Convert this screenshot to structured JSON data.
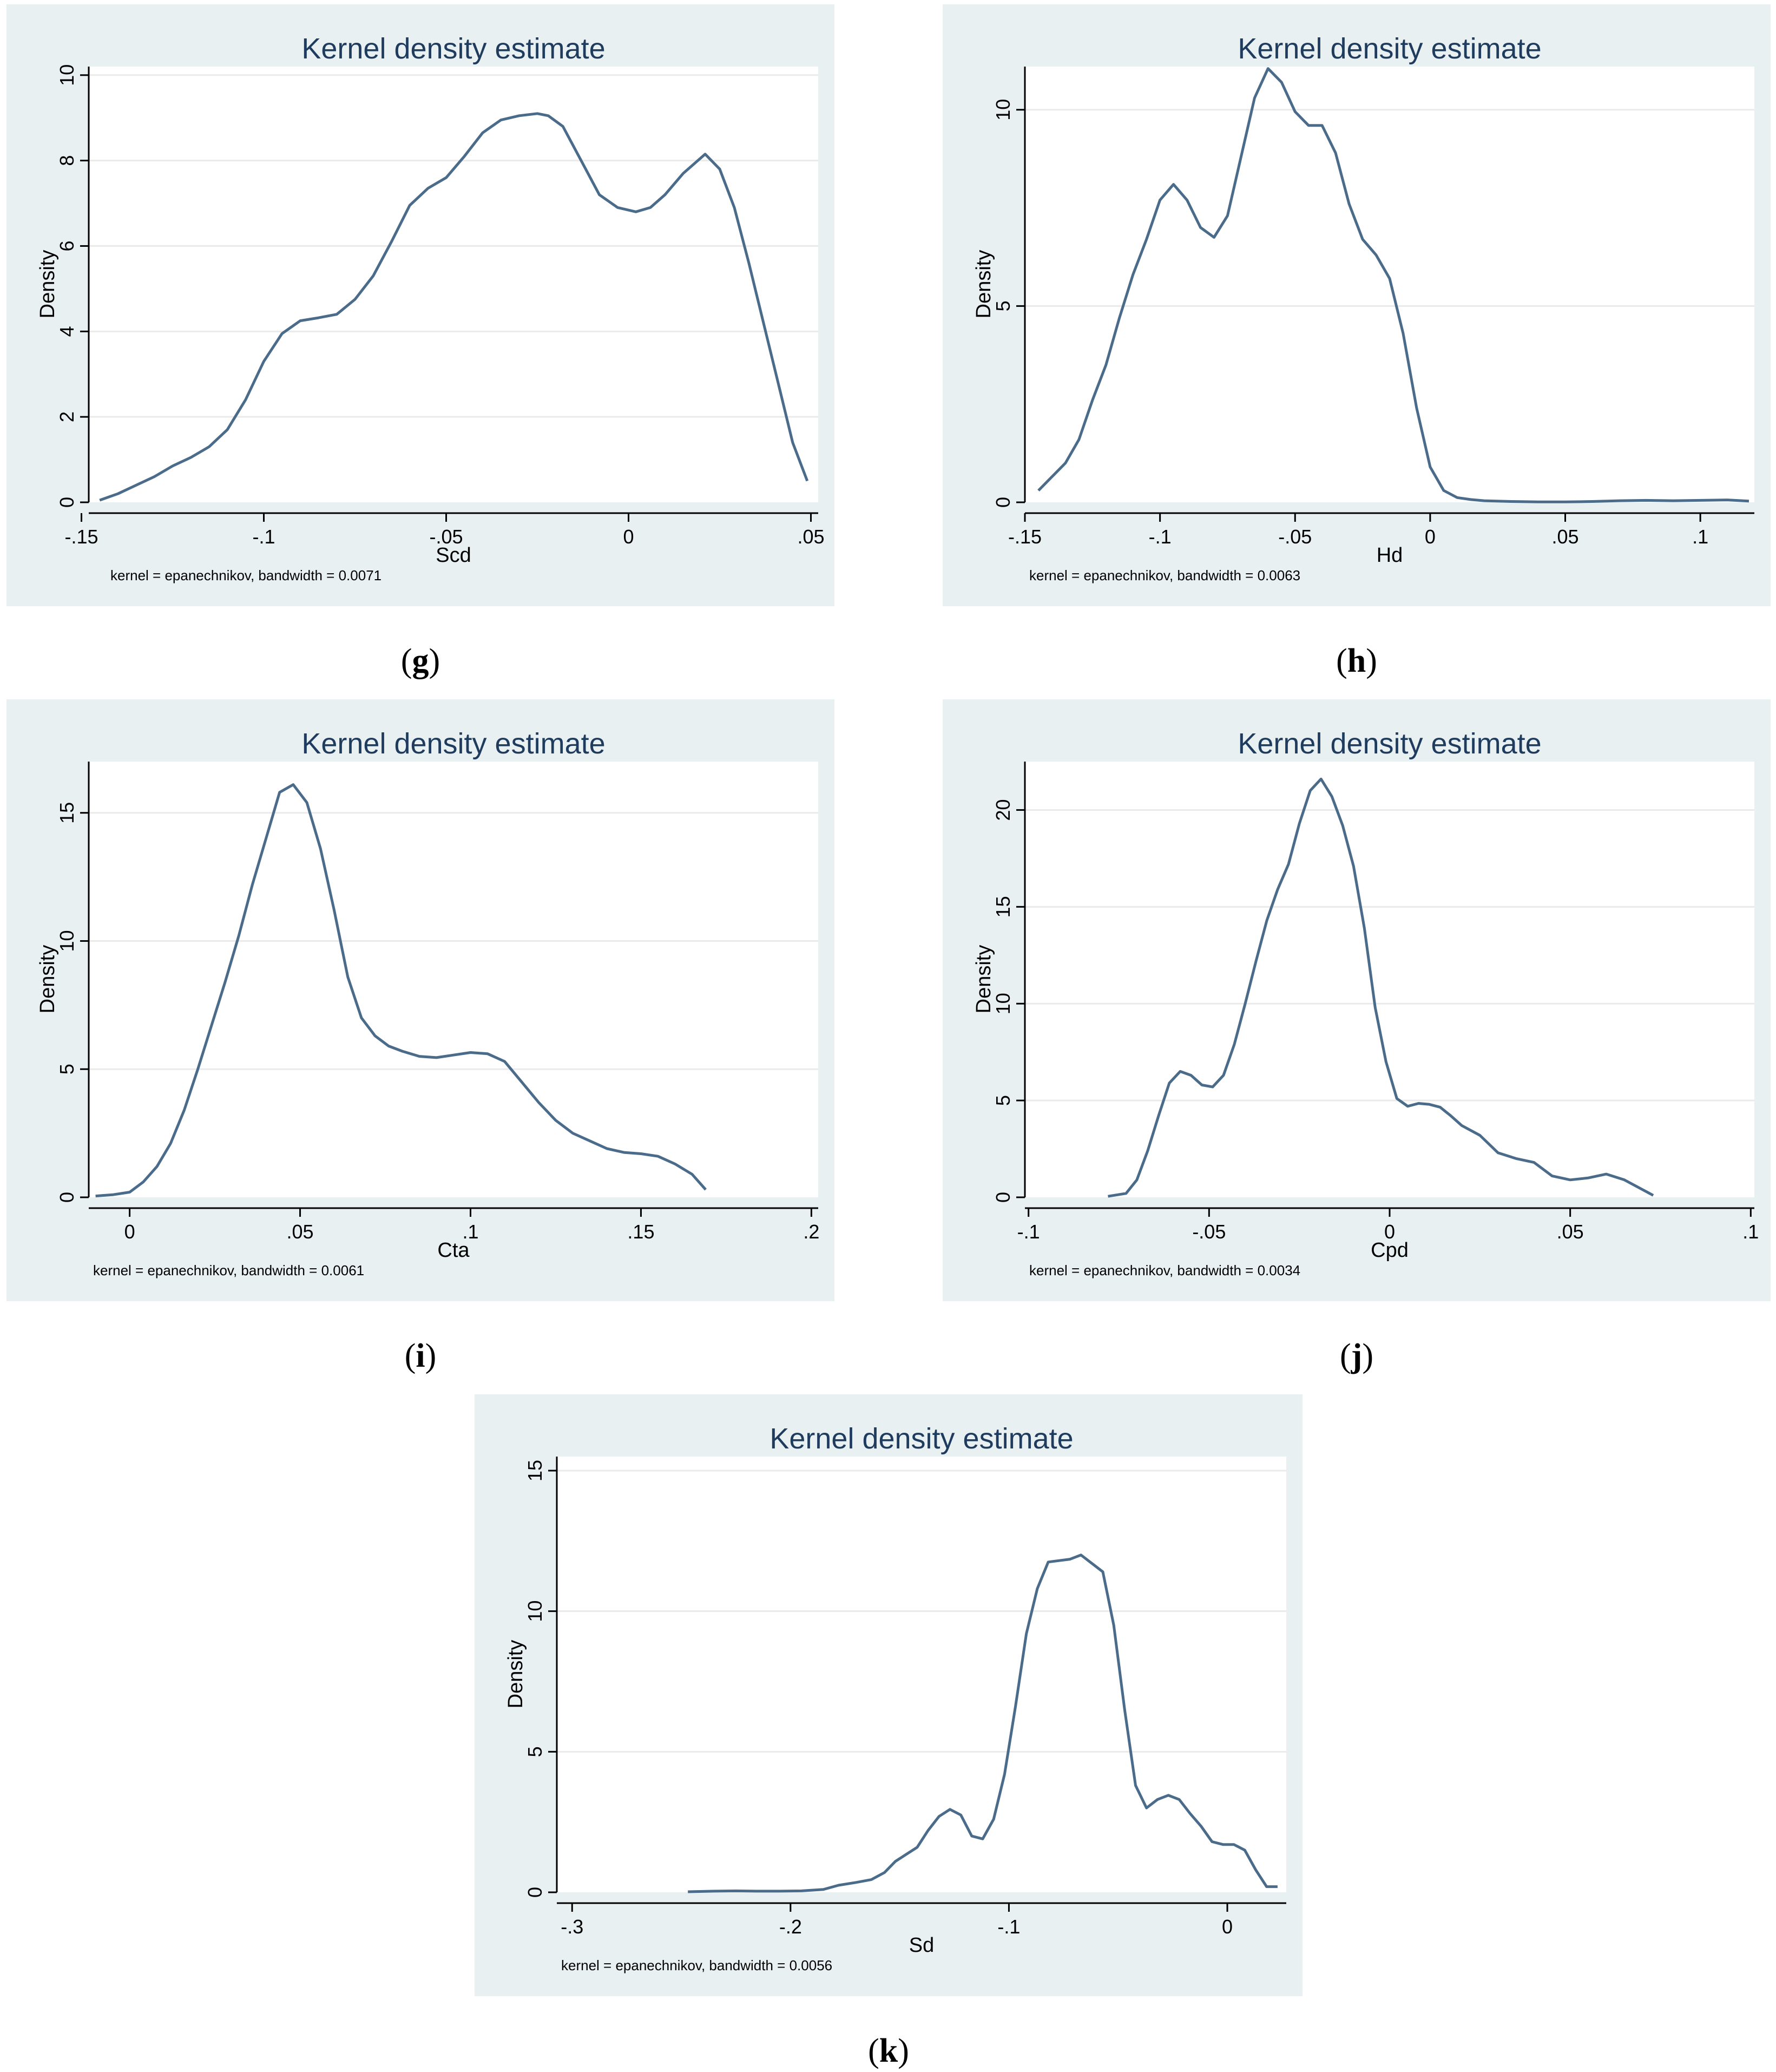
{
  "colors": {
    "panel_bg": "#e8f0f1",
    "plot_bg": "#ffffff",
    "line": "#4a6c8a",
    "title": "#1f3c5e",
    "grid": "#eaeaea",
    "axis": "#000000"
  },
  "chart_data": [
    {
      "id": "g",
      "caption": "g",
      "type": "line",
      "title": "Kernel density estimate",
      "xlabel": "Scd",
      "ylabel": "Density",
      "note": "kernel = epanechnikov, bandwidth = 0.0071",
      "xlim": [
        -0.148,
        0.052
      ],
      "ylim": [
        0,
        10.2
      ],
      "xticks": [
        {
          "v": -0.15,
          "t": "-.15"
        },
        {
          "v": -0.1,
          "t": "-.1"
        },
        {
          "v": -0.05,
          "t": "-.05"
        },
        {
          "v": 0,
          "t": "0"
        },
        {
          "v": 0.05,
          "t": ".05"
        }
      ],
      "yticks": [
        {
          "v": 0,
          "t": "0"
        },
        {
          "v": 2,
          "t": "2"
        },
        {
          "v": 4,
          "t": "4"
        },
        {
          "v": 6,
          "t": "6"
        },
        {
          "v": 8,
          "t": "8"
        },
        {
          "v": 10,
          "t": "10"
        }
      ],
      "x": [
        -0.145,
        -0.14,
        -0.135,
        -0.13,
        -0.125,
        -0.12,
        -0.115,
        -0.11,
        -0.105,
        -0.1,
        -0.095,
        -0.09,
        -0.085,
        -0.08,
        -0.075,
        -0.07,
        -0.065,
        -0.06,
        -0.055,
        -0.05,
        -0.045,
        -0.04,
        -0.035,
        -0.03,
        -0.025,
        -0.022,
        -0.018,
        -0.013,
        -0.008,
        -0.003,
        0.002,
        0.006,
        0.01,
        0.015,
        0.021,
        0.025,
        0.029,
        0.033,
        0.037,
        0.041,
        0.045,
        0.049
      ],
      "y": [
        0.05,
        0.2,
        0.4,
        0.6,
        0.85,
        1.05,
        1.3,
        1.7,
        2.4,
        3.3,
        3.95,
        4.25,
        4.32,
        4.4,
        4.75,
        5.3,
        6.1,
        6.95,
        7.35,
        7.6,
        8.1,
        8.65,
        8.95,
        9.05,
        9.1,
        9.05,
        8.8,
        8.0,
        7.2,
        6.9,
        6.8,
        6.9,
        7.2,
        7.7,
        8.15,
        7.8,
        6.9,
        5.6,
        4.2,
        2.8,
        1.4,
        0.5
      ]
    },
    {
      "id": "h",
      "caption": "h",
      "type": "line",
      "title": "Kernel density estimate",
      "xlabel": "Hd",
      "ylabel": "Density",
      "note": "kernel = epanechnikov, bandwidth = 0.0063",
      "xlim": [
        -0.15,
        0.12
      ],
      "ylim": [
        0,
        11.1
      ],
      "xticks": [
        {
          "v": -0.15,
          "t": "-.15"
        },
        {
          "v": -0.1,
          "t": "-.1"
        },
        {
          "v": -0.05,
          "t": "-.05"
        },
        {
          "v": 0,
          "t": "0"
        },
        {
          "v": 0.05,
          "t": ".05"
        },
        {
          "v": 0.1,
          "t": ".1"
        }
      ],
      "yticks": [
        {
          "v": 0,
          "t": "0"
        },
        {
          "v": 5,
          "t": "5"
        },
        {
          "v": 10,
          "t": "10"
        }
      ],
      "x": [
        -0.145,
        -0.14,
        -0.135,
        -0.13,
        -0.125,
        -0.12,
        -0.115,
        -0.11,
        -0.105,
        -0.1,
        -0.095,
        -0.09,
        -0.085,
        -0.08,
        -0.075,
        -0.07,
        -0.065,
        -0.06,
        -0.055,
        -0.05,
        -0.045,
        -0.04,
        -0.035,
        -0.03,
        -0.025,
        -0.02,
        -0.015,
        -0.01,
        -0.005,
        0,
        0.005,
        0.01,
        0.015,
        0.02,
        0.03,
        0.04,
        0.05,
        0.06,
        0.07,
        0.08,
        0.09,
        0.1,
        0.11,
        0.118
      ],
      "y": [
        0.3,
        0.65,
        1.0,
        1.6,
        2.6,
        3.5,
        4.7,
        5.8,
        6.7,
        7.7,
        8.1,
        7.7,
        7.0,
        6.75,
        7.3,
        8.8,
        10.3,
        11.05,
        10.7,
        9.95,
        9.6,
        9.6,
        8.9,
        7.6,
        6.7,
        6.3,
        5.7,
        4.3,
        2.4,
        0.9,
        0.3,
        0.12,
        0.07,
        0.04,
        0.02,
        0.01,
        0.01,
        0.02,
        0.04,
        0.05,
        0.04,
        0.05,
        0.06,
        0.03
      ]
    },
    {
      "id": "i",
      "caption": "i",
      "type": "line",
      "title": "Kernel density estimate",
      "xlabel": "Cta",
      "ylabel": "Density",
      "note": "kernel = epanechnikov, bandwidth = 0.0061",
      "xlim": [
        -0.012,
        0.202
      ],
      "ylim": [
        0,
        17
      ],
      "xticks": [
        {
          "v": 0,
          "t": "0"
        },
        {
          "v": 0.05,
          "t": ".05"
        },
        {
          "v": 0.1,
          "t": ".1"
        },
        {
          "v": 0.15,
          "t": ".15"
        },
        {
          "v": 0.2,
          "t": ".2"
        }
      ],
      "yticks": [
        {
          "v": 0,
          "t": "0"
        },
        {
          "v": 5,
          "t": "5"
        },
        {
          "v": 10,
          "t": "10"
        },
        {
          "v": 15,
          "t": "15"
        }
      ],
      "x": [
        -0.01,
        -0.005,
        0,
        0.004,
        0.008,
        0.012,
        0.016,
        0.02,
        0.024,
        0.028,
        0.032,
        0.036,
        0.04,
        0.044,
        0.048,
        0.052,
        0.056,
        0.06,
        0.064,
        0.068,
        0.072,
        0.076,
        0.08,
        0.085,
        0.09,
        0.095,
        0.1,
        0.105,
        0.11,
        0.115,
        0.12,
        0.125,
        0.13,
        0.135,
        0.14,
        0.145,
        0.15,
        0.155,
        0.16,
        0.165,
        0.169
      ],
      "y": [
        0.05,
        0.1,
        0.2,
        0.6,
        1.2,
        2.1,
        3.4,
        5.0,
        6.7,
        8.4,
        10.2,
        12.2,
        14.0,
        15.8,
        16.1,
        15.4,
        13.6,
        11.2,
        8.6,
        7.0,
        6.3,
        5.9,
        5.7,
        5.5,
        5.45,
        5.55,
        5.65,
        5.6,
        5.3,
        4.5,
        3.7,
        3.0,
        2.5,
        2.2,
        1.9,
        1.75,
        1.7,
        1.6,
        1.3,
        0.9,
        0.3
      ]
    },
    {
      "id": "j",
      "caption": "j",
      "type": "line",
      "title": "Kernel density estimate",
      "xlabel": "Cpd",
      "ylabel": "Density",
      "note": "kernel = epanechnikov, bandwidth = 0.0034",
      "xlim": [
        -0.101,
        0.101
      ],
      "ylim": [
        0,
        22.5
      ],
      "xticks": [
        {
          "v": -0.1,
          "t": "-.1"
        },
        {
          "v": -0.05,
          "t": "-.05"
        },
        {
          "v": 0,
          "t": "0"
        },
        {
          "v": 0.05,
          "t": ".05"
        },
        {
          "v": 0.1,
          "t": ".1"
        }
      ],
      "yticks": [
        {
          "v": 0,
          "t": "0"
        },
        {
          "v": 5,
          "t": "5"
        },
        {
          "v": 10,
          "t": "10"
        },
        {
          "v": 15,
          "t": "15"
        },
        {
          "v": 20,
          "t": "20"
        }
      ],
      "x": [
        -0.078,
        -0.073,
        -0.07,
        -0.067,
        -0.064,
        -0.061,
        -0.058,
        -0.055,
        -0.052,
        -0.049,
        -0.046,
        -0.043,
        -0.04,
        -0.037,
        -0.034,
        -0.031,
        -0.028,
        -0.025,
        -0.022,
        -0.019,
        -0.016,
        -0.013,
        -0.01,
        -0.007,
        -0.004,
        -0.001,
        0.002,
        0.005,
        0.008,
        0.011,
        0.014,
        0.017,
        0.02,
        0.025,
        0.03,
        0.035,
        0.04,
        0.045,
        0.05,
        0.055,
        0.06,
        0.065,
        0.07,
        0.073
      ],
      "y": [
        0.05,
        0.2,
        0.9,
        2.4,
        4.2,
        5.9,
        6.5,
        6.3,
        5.8,
        5.7,
        6.3,
        7.9,
        10.0,
        12.2,
        14.3,
        15.9,
        17.2,
        19.3,
        21.0,
        21.6,
        20.7,
        19.2,
        17.1,
        13.9,
        9.8,
        7.0,
        5.1,
        4.7,
        4.85,
        4.8,
        4.65,
        4.2,
        3.7,
        3.2,
        2.3,
        2.0,
        1.8,
        1.1,
        0.9,
        1.0,
        1.2,
        0.9,
        0.4,
        0.1
      ]
    },
    {
      "id": "k",
      "caption": "k",
      "type": "line",
      "title": "Kernel density estimate",
      "xlabel": "Sd",
      "ylabel": "Density",
      "note": "kernel = epanechnikov, bandwidth = 0.0056",
      "xlim": [
        -0.307,
        0.027
      ],
      "ylim": [
        0,
        15.5
      ],
      "xticks": [
        {
          "v": -0.3,
          "t": "-.3"
        },
        {
          "v": -0.2,
          "t": "-.2"
        },
        {
          "v": -0.1,
          "t": "-.1"
        },
        {
          "v": 0,
          "t": "0"
        }
      ],
      "yticks": [
        {
          "v": 0,
          "t": "0"
        },
        {
          "v": 5,
          "t": "5"
        },
        {
          "v": 10,
          "t": "10"
        },
        {
          "v": 15,
          "t": "15"
        }
      ],
      "x": [
        -0.247,
        -0.235,
        -0.225,
        -0.215,
        -0.205,
        -0.195,
        -0.185,
        -0.178,
        -0.17,
        -0.163,
        -0.157,
        -0.152,
        -0.147,
        -0.142,
        -0.137,
        -0.132,
        -0.127,
        -0.122,
        -0.117,
        -0.112,
        -0.107,
        -0.102,
        -0.097,
        -0.092,
        -0.087,
        -0.082,
        -0.077,
        -0.072,
        -0.067,
        -0.062,
        -0.057,
        -0.052,
        -0.047,
        -0.042,
        -0.037,
        -0.032,
        -0.027,
        -0.022,
        -0.017,
        -0.012,
        -0.007,
        -0.002,
        0.003,
        0.008,
        0.013,
        0.018,
        0.023
      ],
      "y": [
        0.02,
        0.04,
        0.05,
        0.04,
        0.04,
        0.05,
        0.1,
        0.25,
        0.35,
        0.45,
        0.7,
        1.1,
        1.35,
        1.6,
        2.2,
        2.7,
        2.95,
        2.75,
        2.0,
        1.9,
        2.6,
        4.2,
        6.6,
        9.2,
        10.8,
        11.75,
        11.8,
        11.85,
        12.0,
        11.7,
        11.4,
        9.5,
        6.5,
        3.8,
        3.0,
        3.3,
        3.45,
        3.3,
        2.8,
        2.35,
        1.8,
        1.7,
        1.7,
        1.5,
        0.8,
        0.2,
        0.2
      ]
    }
  ]
}
